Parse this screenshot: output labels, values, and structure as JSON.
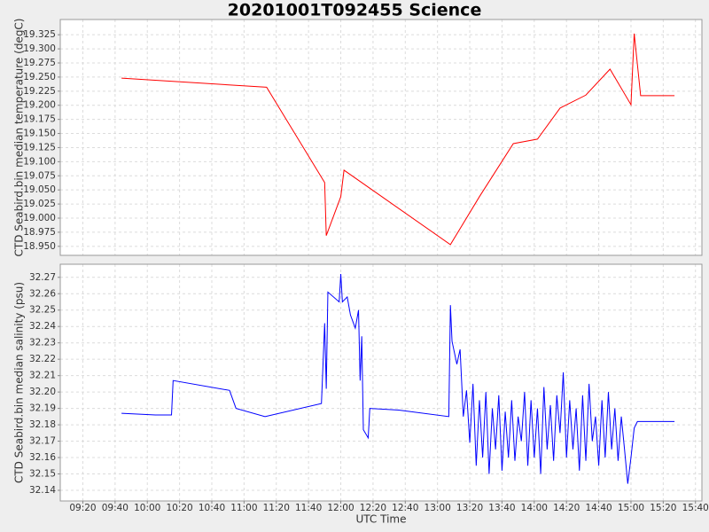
{
  "chart_data": [
    {
      "type": "line",
      "title": "20201001T092455 Science",
      "y_label": "CTD Seabird.bin median temperature (degC)",
      "color": "#ff0000",
      "grid": true,
      "ylim": [
        18.934,
        19.352
      ],
      "yticks": [
        {
          "value": 18.95,
          "label": "18.950"
        },
        18.975,
        {
          "value": 19,
          "label": "19.000"
        },
        19.025,
        {
          "value": 19.05,
          "label": "19.050"
        },
        19.075,
        {
          "value": 19.1,
          "label": "19.100"
        },
        19.125,
        {
          "value": 19.15,
          "label": "19.150"
        },
        19.175,
        {
          "value": 19.2,
          "label": "19.200"
        },
        19.225,
        {
          "value": 19.25,
          "label": "19.250"
        },
        19.275,
        {
          "value": 19.3,
          "label": "19.300"
        },
        19.325
      ],
      "x": [
        "09:44",
        "11:14",
        "11:50",
        "11:51",
        "12:00",
        "12:02",
        "13:08",
        "13:26",
        "13:47",
        "14:02",
        "14:16",
        "14:32",
        "14:47",
        "15:00",
        "15:02",
        "15:06",
        "15:27"
      ],
      "values": [
        19.248,
        19.232,
        19.063,
        18.969,
        19.038,
        19.085,
        18.953,
        19.038,
        19.132,
        19.14,
        19.195,
        19.218,
        19.264,
        19.201,
        19.327,
        19.217,
        19.217
      ]
    },
    {
      "type": "line",
      "x_label": "UTC Time",
      "y_label": "CTD Seabird.bin median salinity (psu)",
      "color": "#0000ff",
      "grid": true,
      "xlim": [
        "09:06",
        "15:44"
      ],
      "xticks": [
        "09:20",
        "09:40",
        "10:00",
        "10:20",
        "10:40",
        "11:00",
        "11:20",
        "11:40",
        "12:00",
        "12:20",
        "12:40",
        "13:00",
        "13:20",
        "13:40",
        "14:00",
        "14:20",
        "14:40",
        "15:00",
        "15:20",
        "15:40"
      ],
      "ylim": [
        32.1335,
        32.278
      ],
      "yticks": [
        32.14,
        32.15,
        32.16,
        32.17,
        32.18,
        32.19,
        {
          "value": 32.2,
          "label": "32.20"
        },
        32.21,
        32.22,
        32.23,
        32.24,
        32.25,
        32.26,
        32.27
      ],
      "x": [
        "09:44",
        "10:05",
        "10:15",
        "10:16",
        "10:51",
        "10:55",
        "11:13",
        "11:48",
        "11:50",
        "11:51",
        "11:52",
        "11:59",
        "12:00",
        "12:01",
        "12:04",
        "12:06",
        "12:09",
        "12:11",
        "12:12",
        "12:13",
        "12:14",
        "12:17",
        "12:18",
        "12:36",
        "13:07",
        "13:08",
        "13:09",
        "13:12",
        "13:14",
        "13:16",
        "13:18",
        "13:20",
        "13:22",
        "13:24",
        "13:26",
        "13:28",
        "13:30",
        "13:32",
        "13:34",
        "13:36",
        "13:38",
        "13:40",
        "13:42",
        "13:44",
        "13:46",
        "13:48",
        "13:50",
        "13:52",
        "13:54",
        "13:56",
        "13:58",
        "14:00",
        "14:02",
        "14:04",
        "14:06",
        "14:08",
        "14:10",
        "14:12",
        "14:14",
        "14:16",
        "14:18",
        "14:20",
        "14:22",
        "14:24",
        "14:26",
        "14:28",
        "14:30",
        "14:32",
        "14:34",
        "14:36",
        "14:38",
        "14:40",
        "14:42",
        "14:44",
        "14:46",
        "14:48",
        "14:50",
        "14:52",
        "14:54",
        "14:56",
        "14:58",
        "15:00",
        "15:02",
        "15:04",
        "15:27"
      ],
      "values": [
        32.187,
        32.186,
        32.186,
        32.207,
        32.201,
        32.19,
        32.185,
        32.193,
        32.242,
        32.202,
        32.261,
        32.255,
        32.272,
        32.255,
        32.258,
        32.247,
        32.239,
        32.25,
        32.207,
        32.234,
        32.177,
        32.172,
        32.19,
        32.189,
        32.185,
        32.253,
        32.231,
        32.217,
        32.226,
        32.185,
        32.201,
        32.169,
        32.205,
        32.155,
        32.195,
        32.16,
        32.2,
        32.15,
        32.19,
        32.165,
        32.198,
        32.152,
        32.188,
        32.16,
        32.195,
        32.158,
        32.185,
        32.17,
        32.2,
        32.155,
        32.195,
        32.16,
        32.19,
        32.15,
        32.203,
        32.165,
        32.192,
        32.158,
        32.198,
        32.175,
        32.212,
        32.16,
        32.195,
        32.165,
        32.19,
        32.152,
        32.198,
        32.158,
        32.205,
        32.17,
        32.185,
        32.155,
        32.195,
        32.16,
        32.2,
        32.165,
        32.19,
        32.158,
        32.185,
        32.165,
        32.144,
        32.16,
        32.178,
        32.182,
        32.182
      ]
    }
  ]
}
